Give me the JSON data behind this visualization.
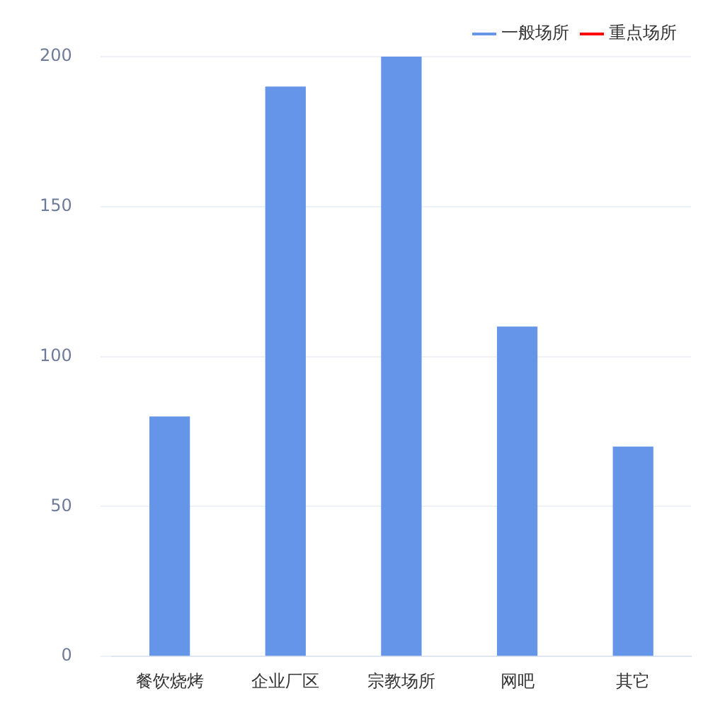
{
  "chart_data": {
    "type": "bar",
    "categories": [
      "餐饮烧烤",
      "企业厂区",
      "宗教场所",
      "网吧",
      "其它"
    ],
    "series": [
      {
        "name": "一般场所",
        "color": "#6495e8",
        "values": [
          80,
          190,
          200,
          110,
          70
        ]
      },
      {
        "name": "重点场所",
        "color": "#ff0000",
        "values": [
          null,
          null,
          null,
          null,
          null
        ]
      }
    ],
    "ylim": [
      0,
      200
    ],
    "yticks": [
      0,
      50,
      100,
      150,
      200
    ],
    "grid": "y",
    "legend": "top right"
  }
}
